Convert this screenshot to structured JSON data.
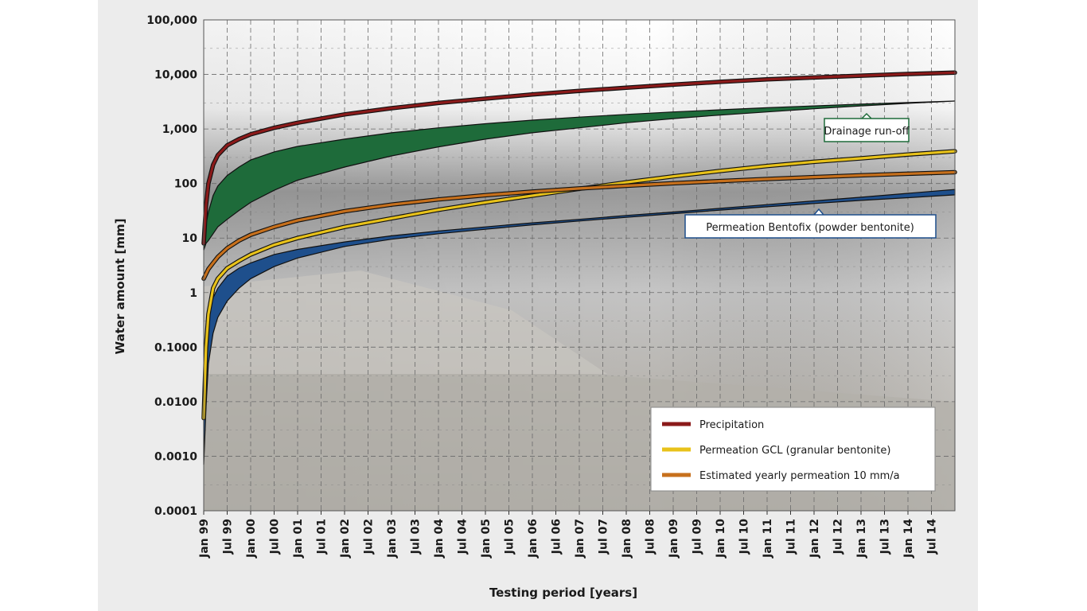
{
  "chart_data": {
    "type": "line",
    "xlabel": "Testing period [years]",
    "ylabel": "Water amount [mm]",
    "y_scale": "log",
    "ylim": [
      0.0001,
      100000
    ],
    "grid": true,
    "legend_position": "bottom-right",
    "x_tick_labels": [
      "Jan 99",
      "Jul 99",
      "Jan 00",
      "Jul 00",
      "Jan 01",
      "Jul 01",
      "Jan 02",
      "Jul 02",
      "Jan 03",
      "Jul 03",
      "Jan 04",
      "Jul 04",
      "Jan 05",
      "Jul 05",
      "Jan 06",
      "Jul 06",
      "Jan 07",
      "Jul 07",
      "Jan 08",
      "Jul 08",
      "Jan 09",
      "Jul 09",
      "Jan 10",
      "Jul 10",
      "Jan 11",
      "Jul 11",
      "Jan 12",
      "Jul 12",
      "Jan 13",
      "Jul 13",
      "Jan 14",
      "Jul 14"
    ],
    "y_tick_labels": [
      "100,000",
      "10,000",
      "1,000",
      "100",
      "10",
      "1",
      "0.1000",
      "0.0100",
      "0.0010",
      "0.0001"
    ],
    "y_tick_values": [
      100000,
      10000,
      1000,
      100,
      10,
      1,
      0.1,
      0.01,
      0.001,
      0.0001
    ],
    "x_units": "years since Jan 99",
    "series": [
      {
        "name": "Precipitation",
        "color": "#8b1a1a",
        "x": [
          0,
          0.05,
          0.1,
          0.2,
          0.3,
          0.5,
          0.75,
          1,
          1.5,
          2,
          3,
          4,
          5,
          6,
          7,
          8,
          9,
          10,
          11,
          12,
          13,
          14,
          15,
          16
        ],
        "values": [
          8,
          40,
          100,
          220,
          330,
          500,
          650,
          800,
          1050,
          1300,
          1850,
          2400,
          3000,
          3600,
          4300,
          5000,
          5700,
          6500,
          7300,
          8100,
          8800,
          9500,
          10200,
          10800
        ]
      },
      {
        "name": "Drainage run-off",
        "color": "#1e6b3a",
        "type": "band",
        "x": [
          0,
          0.05,
          0.1,
          0.2,
          0.3,
          0.5,
          0.75,
          1,
          1.5,
          2,
          3,
          4,
          5,
          6,
          7,
          8,
          9,
          10,
          11,
          12,
          13,
          14,
          15,
          16
        ],
        "upper": [
          8,
          18,
          30,
          60,
          90,
          140,
          200,
          270,
          380,
          480,
          650,
          850,
          1050,
          1250,
          1450,
          1650,
          1850,
          2050,
          2250,
          2450,
          2650,
          2850,
          3050,
          3250
        ],
        "lower": [
          6,
          8,
          9,
          12,
          16,
          22,
          32,
          45,
          75,
          115,
          200,
          320,
          470,
          650,
          850,
          1050,
          1300,
          1550,
          1800,
          2050,
          2350,
          2650,
          2950,
          3250
        ]
      },
      {
        "name": "Permeation Bentofix (powder bentonite)",
        "color": "#1e4f8c",
        "type": "band",
        "x": [
          0,
          0.05,
          0.1,
          0.2,
          0.3,
          0.5,
          0.75,
          1,
          1.5,
          2,
          3,
          4,
          5,
          6,
          7,
          8,
          9,
          10,
          11,
          12,
          13,
          14,
          15,
          16
        ],
        "upper": [
          0.005,
          0.12,
          0.35,
          0.8,
          1.2,
          2,
          2.8,
          3.5,
          5,
          6.2,
          8.5,
          11,
          13.5,
          16,
          19,
          22,
          26,
          30,
          35,
          41,
          48,
          56,
          66,
          78
        ],
        "lower": [
          0.0007,
          0.008,
          0.05,
          0.18,
          0.35,
          0.7,
          1.2,
          1.8,
          3,
          4.3,
          7,
          9.5,
          12,
          14.5,
          17.5,
          20.5,
          24,
          28,
          32.5,
          37.5,
          43,
          49,
          55,
          62
        ]
      },
      {
        "name": "Permeation GCL (granular bentonite)",
        "color": "#e8c21a",
        "x": [
          0,
          0.05,
          0.1,
          0.2,
          0.3,
          0.5,
          0.75,
          1,
          1.5,
          2,
          3,
          4,
          5,
          6,
          7,
          8,
          9,
          10,
          11,
          12,
          13,
          14,
          15,
          16
        ],
        "values": [
          0.005,
          0.1,
          0.4,
          1.2,
          1.8,
          2.8,
          3.8,
          5,
          7.5,
          10,
          16,
          23,
          33,
          45,
          60,
          80,
          105,
          135,
          170,
          210,
          250,
          290,
          340,
          390
        ]
      },
      {
        "name": "Estimated yearly permeation 10 mm/a",
        "color": "#c7701c",
        "x": [
          0,
          0.05,
          0.1,
          0.2,
          0.3,
          0.5,
          0.75,
          1,
          1.5,
          2,
          3,
          4,
          5,
          6,
          7,
          8,
          9,
          10,
          11,
          12,
          13,
          14,
          15,
          16
        ],
        "values": [
          1.8,
          2.2,
          2.7,
          3.5,
          4.5,
          6.5,
          9,
          11.5,
          16,
          21,
          31,
          41,
          51,
          61,
          71,
          81,
          91,
          101,
          111,
          121,
          131,
          141,
          151,
          161
        ]
      }
    ],
    "legend": [
      "Precipitation",
      "Permeation GCL (granular bentonite)",
      "Estimated yearly permeation 10 mm/a"
    ],
    "callouts": [
      "Drainage run-off",
      "Permeation Bentofix (powder bentonite)"
    ]
  },
  "colors": {
    "precipitation": "#8b1a1a",
    "drainage": "#1e6b3a",
    "bentofix": "#1e4f8c",
    "gcl": "#e8c21a",
    "estimated": "#c7701c",
    "panel_background": "#ececec"
  }
}
